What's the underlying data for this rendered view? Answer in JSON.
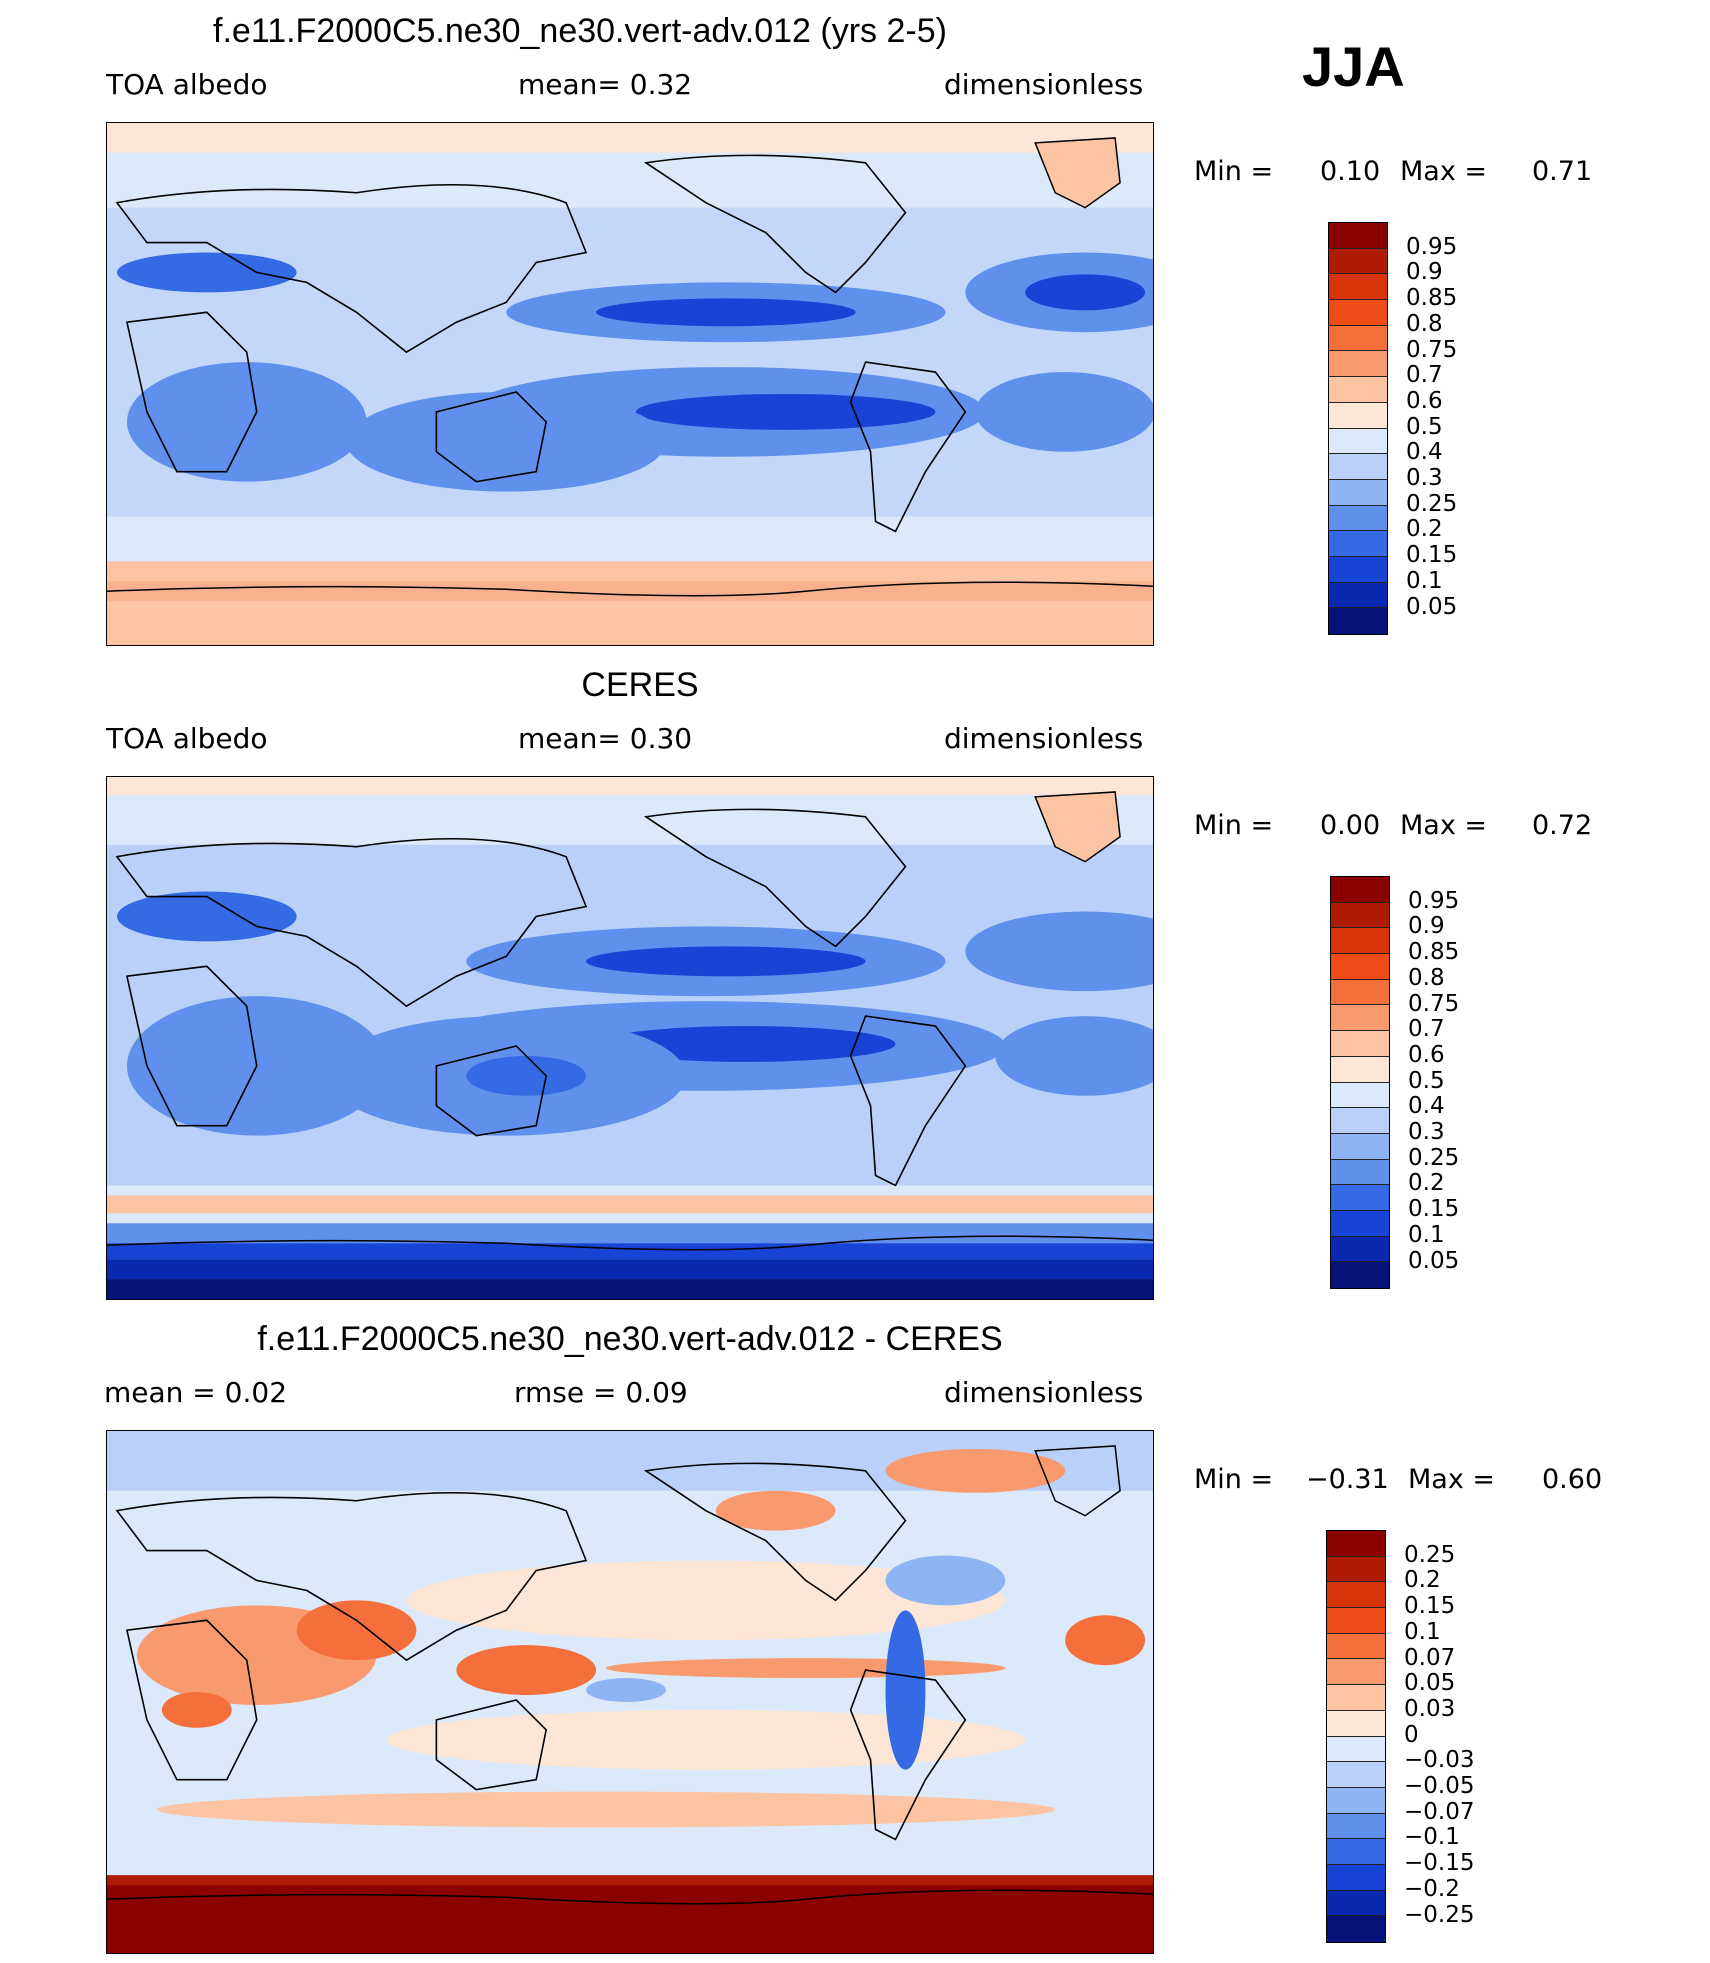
{
  "season": "JJA",
  "panels": [
    {
      "title": "f.e11.F2000C5.ne30_ne30.vert-adv.012 (yrs 2-5)",
      "left_label": "TOA  albedo",
      "center_label": "mean=     0.32",
      "right_label": "dimensionless",
      "stats": {
        "min_label": "Min  =",
        "min_value": "0.10",
        "max_label": "Max  =",
        "max_value": "0.71"
      },
      "colorbar_labels": [
        "0.95",
        "0.9",
        "0.85",
        "0.8",
        "0.75",
        "0.7",
        "0.6",
        "0.5",
        "0.4",
        "0.3",
        "0.25",
        "0.2",
        "0.15",
        "0.1",
        "0.05"
      ],
      "colorbar_colors": [
        "#8b0000",
        "#b01c03",
        "#d8330a",
        "#ef4b16",
        "#f56f3d",
        "#f99a6e",
        "#fcc4a3",
        "#fde6d6",
        "#dce9fb",
        "#b9d1f8",
        "#8fb4f3",
        "#5e90ec",
        "#346ae4",
        "#1744d4",
        "#0a28b0",
        "#04127a"
      ],
      "map": "model"
    },
    {
      "title": "CERES",
      "left_label": "TOA  albedo",
      "center_label": "mean=     0.30",
      "right_label": "dimensionless",
      "stats": {
        "min_label": "Min  =",
        "min_value": "0.00",
        "max_label": "Max  =",
        "max_value": "0.72"
      },
      "colorbar_labels": [
        "0.95",
        "0.9",
        "0.85",
        "0.8",
        "0.75",
        "0.7",
        "0.6",
        "0.5",
        "0.4",
        "0.3",
        "0.25",
        "0.2",
        "0.15",
        "0.1",
        "0.05"
      ],
      "colorbar_colors": [
        "#8b0000",
        "#b01c03",
        "#d8330a",
        "#ef4b16",
        "#f56f3d",
        "#f99a6e",
        "#fcc4a3",
        "#fde6d6",
        "#dce9fb",
        "#b9d1f8",
        "#8fb4f3",
        "#5e90ec",
        "#346ae4",
        "#1744d4",
        "#0a28b0",
        "#04127a"
      ],
      "map": "obs"
    },
    {
      "title": "f.e11.F2000C5.ne30_ne30.vert-adv.012 - CERES",
      "left_label": "mean  =      0.02",
      "center_label": "rmse  =      0.09",
      "right_label": "dimensionless",
      "stats": {
        "min_label": "Min  =",
        "min_value": "−0.31",
        "max_label": "Max  =",
        "max_value": "0.60"
      },
      "colorbar_labels": [
        "0.25",
        "0.2",
        "0.15",
        "0.1",
        "0.07",
        "0.05",
        "0.03",
        "0",
        "−0.03",
        "−0.05",
        "−0.07",
        "−0.1",
        "−0.15",
        "−0.2",
        "−0.25"
      ],
      "colorbar_colors": [
        "#8b0000",
        "#b01c03",
        "#d8330a",
        "#ef4b16",
        "#f56f3d",
        "#f99a6e",
        "#fcc4a3",
        "#fde6d6",
        "#dce9fb",
        "#b9d1f8",
        "#8fb4f3",
        "#5e90ec",
        "#346ae4",
        "#1744d4",
        "#0a28b0",
        "#04127a"
      ],
      "map": "diff"
    }
  ]
}
